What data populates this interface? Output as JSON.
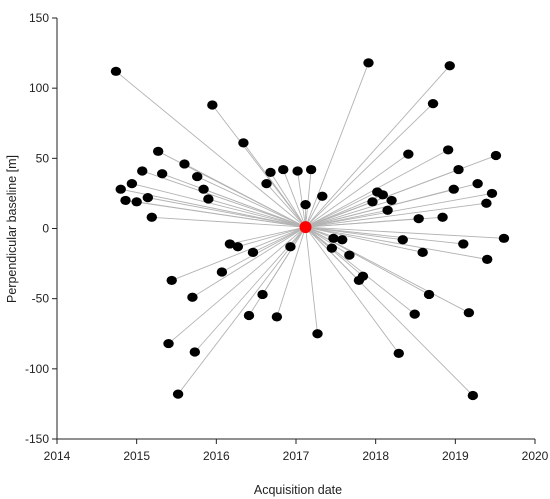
{
  "chart_data": {
    "type": "scatter",
    "title": "",
    "xlabel": "Acquisition date",
    "ylabel": "Perpendicular baseline [m]",
    "xlim": [
      2014,
      2020
    ],
    "ylim": [
      -150,
      150
    ],
    "x_ticks": [
      2014,
      2015,
      2016,
      2017,
      2018,
      2019,
      2020
    ],
    "y_ticks": [
      -150,
      -100,
      -50,
      0,
      50,
      100,
      150
    ],
    "grid": false,
    "legend": "none",
    "master": {
      "x": 2017.12,
      "y": 1
    },
    "series": [
      {
        "marker_color": "#000000",
        "connector_color": "#b3b3b3",
        "master_color": "#ff0000",
        "points": [
          {
            "x": 2014.74,
            "y": 112
          },
          {
            "x": 2014.8,
            "y": 28
          },
          {
            "x": 2014.86,
            "y": 20
          },
          {
            "x": 2014.94,
            "y": 32
          },
          {
            "x": 2015.0,
            "y": 19
          },
          {
            "x": 2015.07,
            "y": 41
          },
          {
            "x": 2015.14,
            "y": 22
          },
          {
            "x": 2015.19,
            "y": 8
          },
          {
            "x": 2015.27,
            "y": 55
          },
          {
            "x": 2015.32,
            "y": 39
          },
          {
            "x": 2015.44,
            "y": -37
          },
          {
            "x": 2015.4,
            "y": -82
          },
          {
            "x": 2015.52,
            "y": -118
          },
          {
            "x": 2015.6,
            "y": 46
          },
          {
            "x": 2015.7,
            "y": -49
          },
          {
            "x": 2015.73,
            "y": -88
          },
          {
            "x": 2015.76,
            "y": 37
          },
          {
            "x": 2015.84,
            "y": 28
          },
          {
            "x": 2015.9,
            "y": 21
          },
          {
            "x": 2015.95,
            "y": 88
          },
          {
            "x": 2016.07,
            "y": -31
          },
          {
            "x": 2016.17,
            "y": -11
          },
          {
            "x": 2016.27,
            "y": -13
          },
          {
            "x": 2016.34,
            "y": 61
          },
          {
            "x": 2016.41,
            "y": -62
          },
          {
            "x": 2016.46,
            "y": -17
          },
          {
            "x": 2016.58,
            "y": -47
          },
          {
            "x": 2016.63,
            "y": 32
          },
          {
            "x": 2016.68,
            "y": 40
          },
          {
            "x": 2016.76,
            "y": -63
          },
          {
            "x": 2016.84,
            "y": 42
          },
          {
            "x": 2016.93,
            "y": -13
          },
          {
            "x": 2017.02,
            "y": 41
          },
          {
            "x": 2017.12,
            "y": 17
          },
          {
            "x": 2017.19,
            "y": 42
          },
          {
            "x": 2017.27,
            "y": -75
          },
          {
            "x": 2017.33,
            "y": 23
          },
          {
            "x": 2017.45,
            "y": -14
          },
          {
            "x": 2017.47,
            "y": -7
          },
          {
            "x": 2017.58,
            "y": -8
          },
          {
            "x": 2017.67,
            "y": -19
          },
          {
            "x": 2017.79,
            "y": -37
          },
          {
            "x": 2017.84,
            "y": -34
          },
          {
            "x": 2017.91,
            "y": 118
          },
          {
            "x": 2017.96,
            "y": 19
          },
          {
            "x": 2018.02,
            "y": 26
          },
          {
            "x": 2018.09,
            "y": 24
          },
          {
            "x": 2018.15,
            "y": 13
          },
          {
            "x": 2018.2,
            "y": 20
          },
          {
            "x": 2018.29,
            "y": -89
          },
          {
            "x": 2018.34,
            "y": -8
          },
          {
            "x": 2018.41,
            "y": 53
          },
          {
            "x": 2018.49,
            "y": -61
          },
          {
            "x": 2018.54,
            "y": 7
          },
          {
            "x": 2018.59,
            "y": -17
          },
          {
            "x": 2018.67,
            "y": -47
          },
          {
            "x": 2018.72,
            "y": 89
          },
          {
            "x": 2018.84,
            "y": 8
          },
          {
            "x": 2018.91,
            "y": 56
          },
          {
            "x": 2018.93,
            "y": 116
          },
          {
            "x": 2018.98,
            "y": 28
          },
          {
            "x": 2019.04,
            "y": 42
          },
          {
            "x": 2019.1,
            "y": -11
          },
          {
            "x": 2019.17,
            "y": -60
          },
          {
            "x": 2019.22,
            "y": -119
          },
          {
            "x": 2019.28,
            "y": 32
          },
          {
            "x": 2019.39,
            "y": 18
          },
          {
            "x": 2019.4,
            "y": -22
          },
          {
            "x": 2019.46,
            "y": 25
          },
          {
            "x": 2019.51,
            "y": 52
          },
          {
            "x": 2019.61,
            "y": -7
          }
        ]
      }
    ]
  }
}
